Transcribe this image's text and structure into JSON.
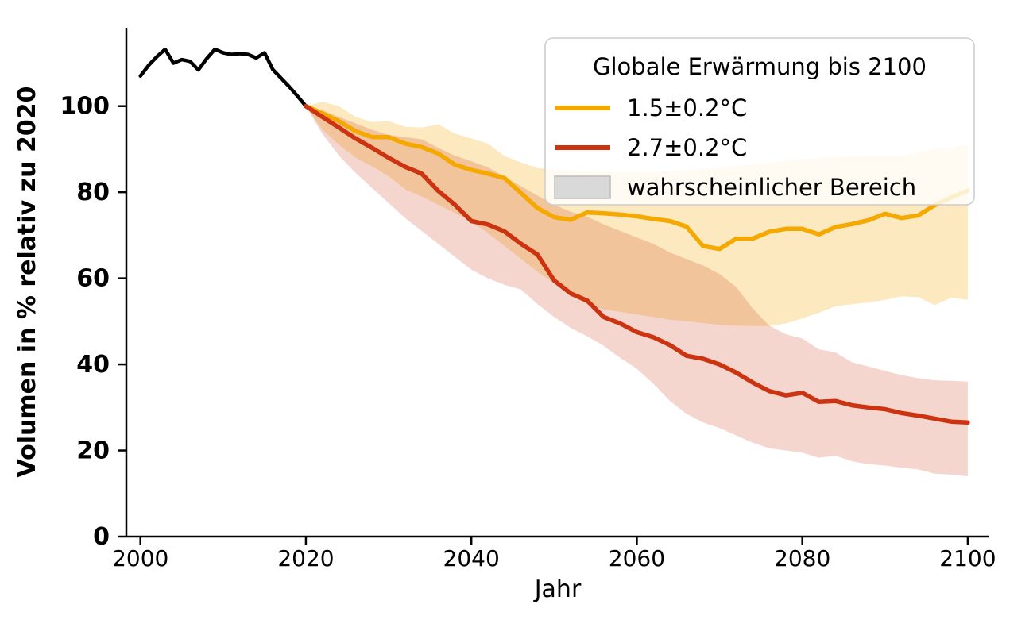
{
  "figure": {
    "background": "#ffffff"
  },
  "axes": {
    "xlabel": "Jahr",
    "ylabel": "Volumen in % relativ zu 2020"
  },
  "legend": {
    "title": "Globale Erwärmung bis 2100",
    "items": [
      {
        "label": "1.5±0.2°C",
        "swatch": "line",
        "color": "#F5A800"
      },
      {
        "label": "2.7±0.2°C",
        "swatch": "line",
        "color": "#CC3311"
      },
      {
        "label": "wahrscheinlicher Bereich",
        "swatch": "patch",
        "color": "#D9D9D9",
        "border": "#BDBDBD"
      }
    ]
  },
  "chart_data": {
    "type": "line",
    "title": "",
    "xlabel": "Jahr",
    "ylabel": "Volumen in % relativ zu 2020",
    "xlim": [
      1998.3,
      2102.6
    ],
    "ylim": [
      0,
      118.2
    ],
    "xticks": [
      2000,
      2020,
      2040,
      2060,
      2080,
      2100
    ],
    "yticks": [
      0,
      20,
      40,
      60,
      80,
      100
    ],
    "grid": false,
    "legend_position": "upper right",
    "series": [
      {
        "name": "historical",
        "color": "#000000",
        "width": 4.5,
        "x": [
          2000,
          2001,
          2002,
          2003,
          2004,
          2005,
          2006,
          2007,
          2008,
          2009,
          2010,
          2011,
          2012,
          2013,
          2014,
          2015,
          2016,
          2017,
          2018,
          2019,
          2020
        ],
        "y": [
          107.0,
          109.5,
          111.5,
          113.2,
          110.0,
          110.8,
          110.4,
          108.4,
          111.0,
          113.2,
          112.4,
          112.0,
          112.2,
          112.0,
          111.2,
          112.4,
          108.5,
          106.5,
          104.5,
          102.3,
          100.0
        ]
      },
      {
        "name": "1.5±0.2°C",
        "color": "#F5A800",
        "width": 5.5,
        "band_opacity": 0.25,
        "x": [
          2020,
          2022,
          2024,
          2026,
          2028,
          2030,
          2032,
          2034,
          2036,
          2038,
          2040,
          2042,
          2044,
          2046,
          2048,
          2050,
          2052,
          2054,
          2056,
          2058,
          2060,
          2062,
          2064,
          2066,
          2068,
          2070,
          2072,
          2074,
          2076,
          2078,
          2080,
          2082,
          2084,
          2086,
          2088,
          2090,
          2092,
          2094,
          2096,
          2098,
          2100
        ],
        "y": [
          100.0,
          98.3,
          96.5,
          94.2,
          92.8,
          92.8,
          91.3,
          90.5,
          89.0,
          86.4,
          85.2,
          84.3,
          83.3,
          79.8,
          76.3,
          74.2,
          73.6,
          75.3,
          75.1,
          74.8,
          74.4,
          73.8,
          73.3,
          72.0,
          67.5,
          66.8,
          69.2,
          69.2,
          70.8,
          71.5,
          71.5,
          70.2,
          71.9,
          72.6,
          73.5,
          75.0,
          74.0,
          74.6,
          77.0,
          78.8,
          80.4
        ],
        "band_upper": [
          100.0,
          101.0,
          100.0,
          97.5,
          96.3,
          96.5,
          95.2,
          95.0,
          95.8,
          93.6,
          92.5,
          91.3,
          88.4,
          86.9,
          85.6,
          85.3,
          85.0,
          84.8,
          84.7,
          84.6,
          84.6,
          84.7,
          84.9,
          85.1,
          85.4,
          85.7,
          86.1,
          86.5,
          86.9,
          87.3,
          87.7,
          88.0,
          88.2,
          88.4,
          88.4,
          88.6,
          88.5,
          89.3,
          90.2,
          90.3,
          91.2
        ],
        "band_lower": [
          100.0,
          94.5,
          91.0,
          88.0,
          86.0,
          83.7,
          80.7,
          79.0,
          77.1,
          75.2,
          73.2,
          70.5,
          67.5,
          64.5,
          61.5,
          58.8,
          56.0,
          54.0,
          52.8,
          52.2,
          51.6,
          51.0,
          50.4,
          50.0,
          49.6,
          49.2,
          49.0,
          48.9,
          48.9,
          49.5,
          50.7,
          52.0,
          53.5,
          54.0,
          54.4,
          55.0,
          55.8,
          55.6,
          53.8,
          55.5,
          55.0
        ]
      },
      {
        "name": "2.7±0.2°C",
        "color": "#CC3311",
        "width": 5.5,
        "band_opacity": 0.2,
        "x": [
          2020,
          2022,
          2024,
          2026,
          2028,
          2030,
          2032,
          2034,
          2036,
          2038,
          2040,
          2042,
          2044,
          2046,
          2048,
          2050,
          2052,
          2054,
          2056,
          2058,
          2060,
          2062,
          2064,
          2066,
          2068,
          2070,
          2072,
          2074,
          2076,
          2078,
          2080,
          2082,
          2084,
          2086,
          2088,
          2090,
          2092,
          2094,
          2096,
          2098,
          2100
        ],
        "y": [
          100.0,
          97.5,
          95.0,
          92.5,
          90.3,
          88.0,
          85.9,
          84.3,
          80.3,
          77.1,
          73.3,
          72.5,
          70.9,
          68.0,
          65.5,
          59.5,
          56.5,
          54.8,
          51.0,
          49.5,
          47.5,
          46.3,
          44.5,
          42.0,
          41.3,
          40.0,
          38.1,
          35.8,
          33.8,
          32.8,
          33.4,
          31.3,
          31.5,
          30.5,
          30.0,
          29.6,
          28.7,
          28.1,
          27.4,
          26.7,
          26.5
        ],
        "band_upper": [
          100.0,
          99.0,
          97.5,
          96.0,
          94.5,
          93.3,
          92.8,
          92.3,
          90.3,
          88.5,
          87.2,
          85.8,
          83.6,
          81.4,
          79.2,
          77.1,
          75.5,
          74.3,
          72.5,
          71.0,
          69.5,
          68.0,
          66.0,
          64.5,
          63.0,
          61.0,
          58.0,
          53.0,
          49.0,
          47.0,
          46.0,
          43.5,
          42.8,
          40.5,
          39.5,
          38.5,
          37.5,
          36.8,
          36.3,
          36.2,
          36.0
        ],
        "band_lower": [
          100.0,
          93.5,
          88.5,
          84.5,
          81.0,
          77.5,
          74.0,
          71.0,
          68.0,
          65.0,
          62.0,
          60.0,
          58.5,
          57.4,
          54.0,
          51.0,
          48.5,
          46.5,
          44.3,
          41.5,
          39.0,
          35.5,
          31.5,
          28.5,
          26.5,
          25.2,
          23.5,
          21.8,
          20.5,
          20.0,
          19.5,
          18.3,
          18.8,
          17.5,
          16.8,
          16.5,
          16.0,
          15.6,
          14.6,
          14.4,
          14.0
        ]
      }
    ]
  }
}
